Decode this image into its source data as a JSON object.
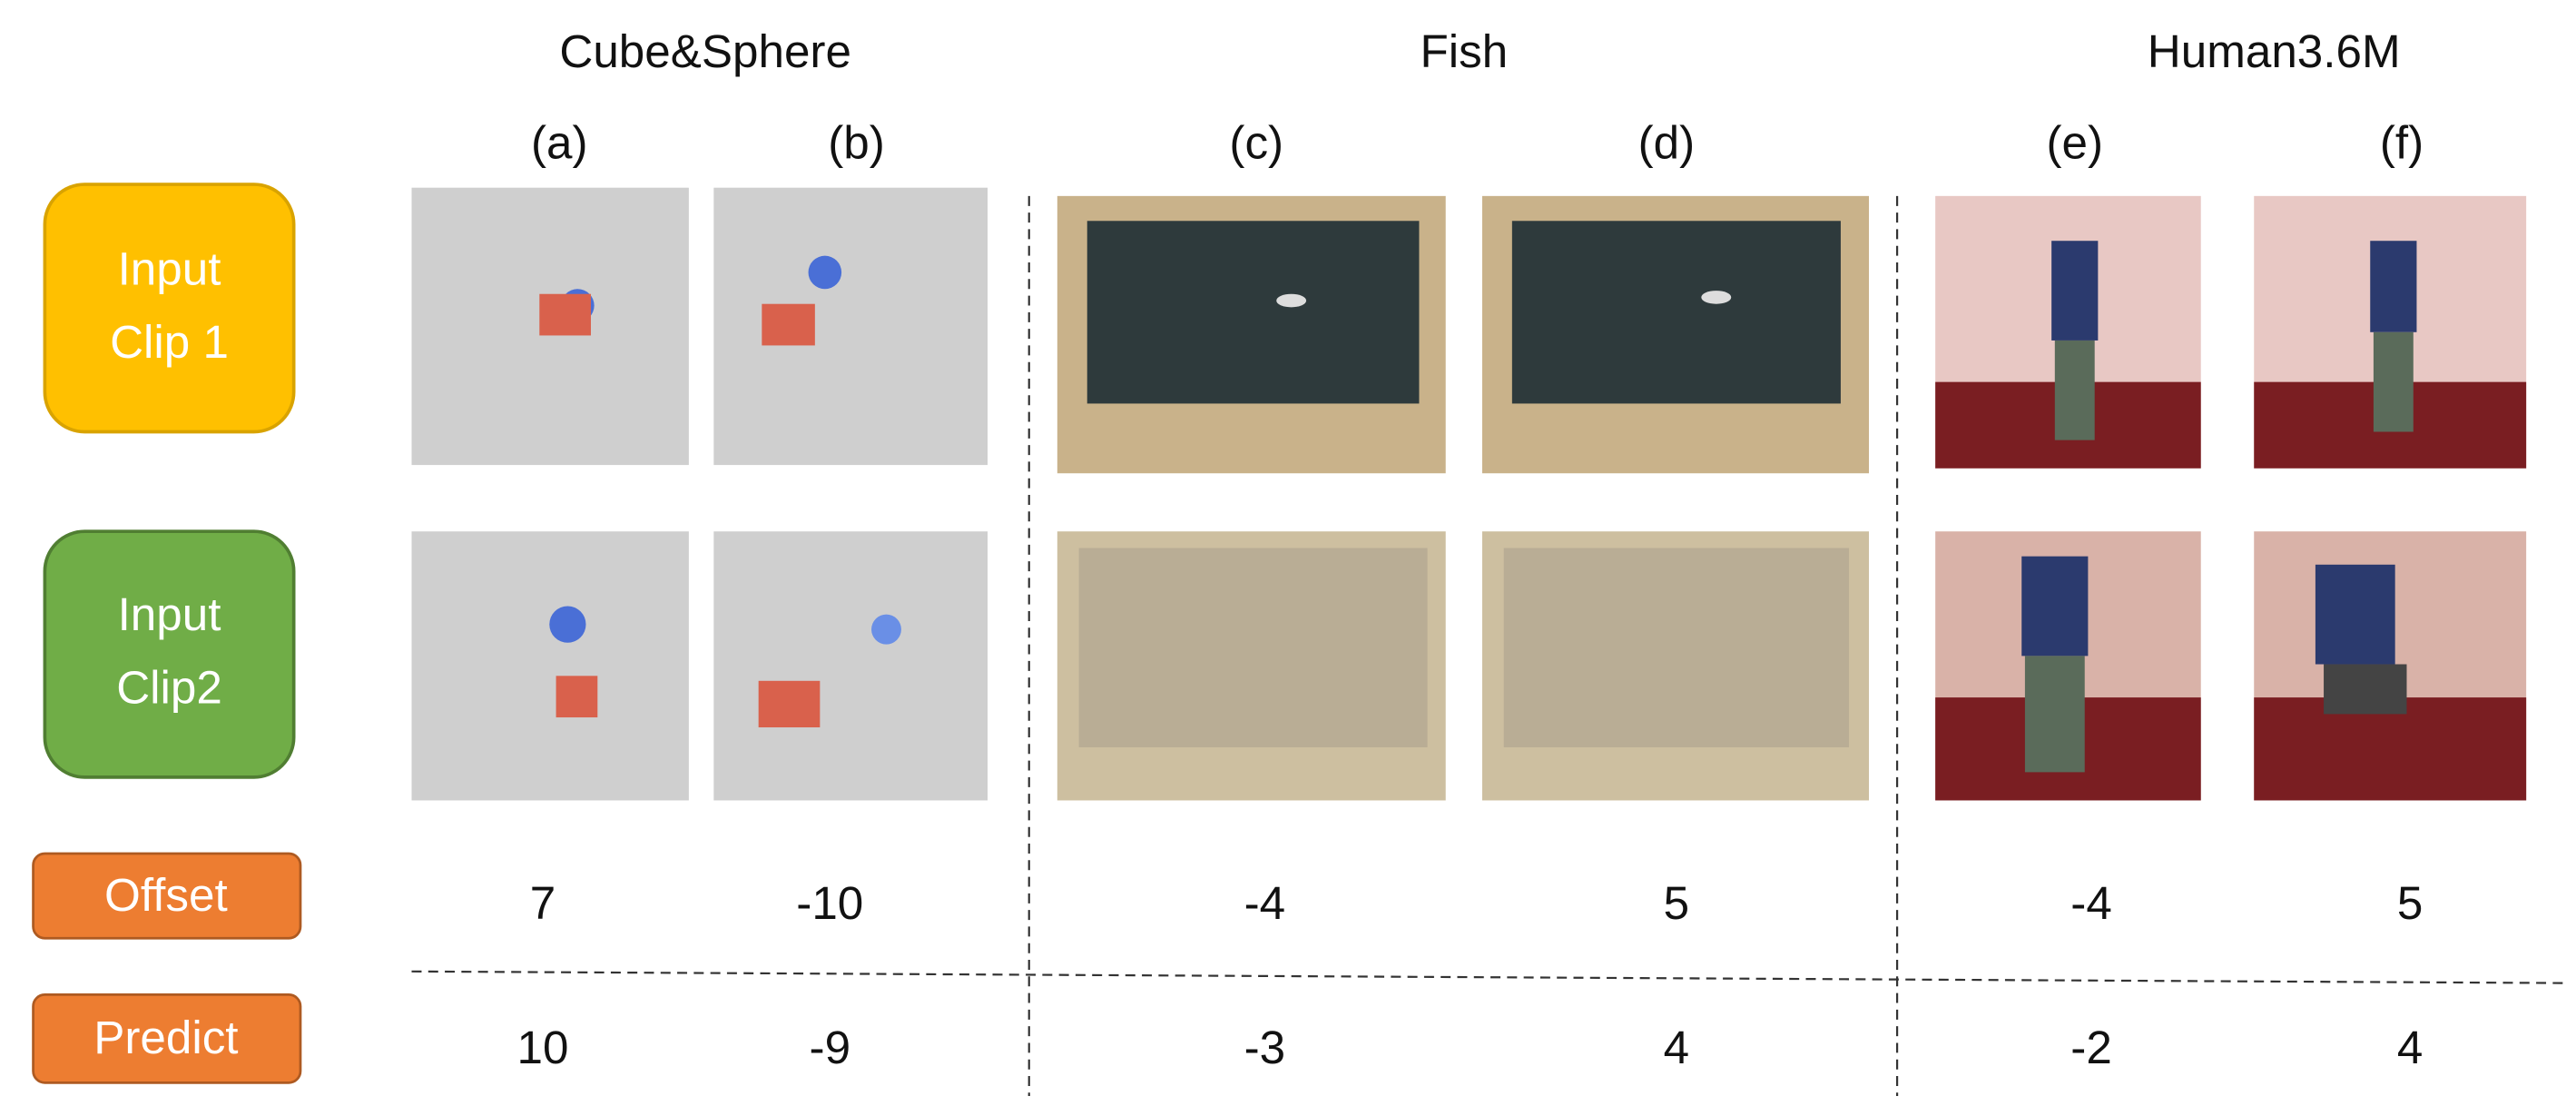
{
  "header": {
    "groups": [
      "Cube&Sphere",
      "Fish",
      "Human3.6M"
    ],
    "columns": [
      "(a)",
      "(b)",
      "(c)",
      "(d)",
      "(e)",
      "(f)"
    ]
  },
  "rows": {
    "input_clip_1": [
      "Input",
      "Clip 1"
    ],
    "input_clip_2": [
      "Input",
      "Clip2"
    ],
    "offset": "Offset",
    "predict": "Predict"
  },
  "offsets": [
    7,
    -10,
    -4,
    5,
    -4,
    5
  ],
  "predictions": [
    10,
    -9,
    -3,
    4,
    -2,
    4
  ]
}
